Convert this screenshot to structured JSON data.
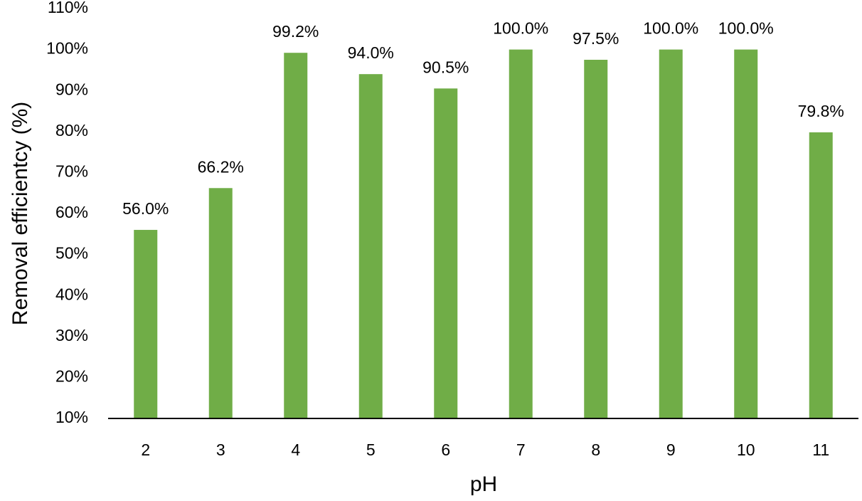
{
  "chart_data": {
    "type": "bar",
    "xlabel": "pH",
    "ylabel": "Removal efficientcy (%)",
    "categories": [
      "2",
      "3",
      "4",
      "5",
      "6",
      "7",
      "8",
      "9",
      "10",
      "11"
    ],
    "values": [
      56.0,
      66.2,
      99.2,
      94.0,
      90.5,
      100.0,
      97.5,
      100.0,
      100.0,
      79.8
    ],
    "data_labels": [
      "56.0%",
      "66.2%",
      "99.2%",
      "94.0%",
      "90.5%",
      "100.0%",
      "97.5%",
      "100.0%",
      "100.0%",
      "79.8%"
    ],
    "ylim": [
      10,
      110
    ],
    "yticks": [
      10,
      20,
      30,
      40,
      50,
      60,
      70,
      80,
      90,
      100,
      110
    ],
    "ytick_labels": [
      "10%",
      "20%",
      "30%",
      "40%",
      "50%",
      "60%",
      "70%",
      "80%",
      "90%",
      "100%",
      "110%"
    ],
    "grid": false,
    "legend": "none",
    "bar_color": "#70ad47"
  }
}
